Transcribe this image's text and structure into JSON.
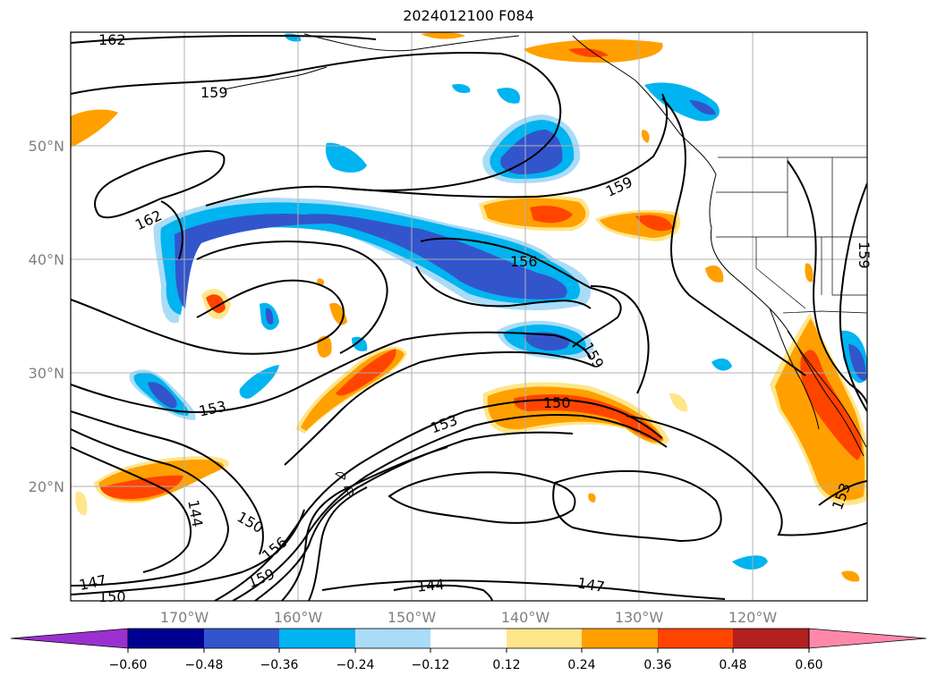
{
  "title": "2024012100 F084",
  "map": {
    "lat_labels": [
      "50°N",
      "40°N",
      "30°N",
      "20°N"
    ],
    "lon_labels": [
      "170°W",
      "160°W",
      "150°W",
      "140°W",
      "130°W",
      "120°W"
    ],
    "contour_labels": [
      "162",
      "159",
      "162",
      "159",
      "156",
      "159",
      "159",
      "153",
      "153",
      "150",
      "144",
      "150",
      "156",
      "159",
      "147",
      "150",
      "144",
      "147",
      "153"
    ]
  },
  "colorbar": {
    "ticks": [
      "−0.60",
      "−0.48",
      "−0.36",
      "−0.24",
      "−0.12",
      "0.12",
      "0.24",
      "0.36",
      "0.48",
      "0.60"
    ],
    "colors": [
      "#9b30d0",
      "#000090",
      "#3355cc",
      "#00b4f0",
      "#aadcf8",
      "#ffffff",
      "#fee68a",
      "#ffa000",
      "#ff4400",
      "#b22020",
      "#ff88aa"
    ]
  }
}
